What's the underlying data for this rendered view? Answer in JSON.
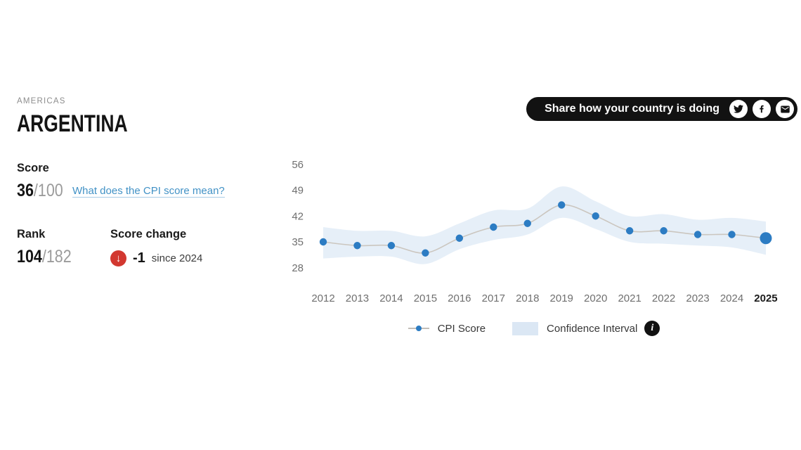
{
  "header": {
    "region": "AMERICAS",
    "country": "ARGENTINA"
  },
  "share": {
    "label": "Share how your country is doing",
    "icons": [
      "twitter-icon",
      "facebook-icon",
      "email-icon"
    ],
    "pill_color": "#121212"
  },
  "stats": {
    "score_label": "Score",
    "score_value": "36",
    "score_denominator": "/100",
    "score_link": "What does the CPI score mean?",
    "rank_label": "Rank",
    "rank_value": "104",
    "rank_denominator": "/182",
    "change_label": "Score change",
    "change_direction": "down",
    "change_arrow": "↓",
    "change_value": "-1",
    "change_suffix": "since 2024"
  },
  "legend": {
    "cpi_label": "CPI Score",
    "ci_label": "Confidence Interval",
    "info_glyph": "i"
  },
  "chart_data": {
    "type": "line",
    "title": "CPI Score over time for Argentina",
    "x": [
      2012,
      2013,
      2014,
      2015,
      2016,
      2017,
      2018,
      2019,
      2020,
      2021,
      2022,
      2023,
      2024,
      2025
    ],
    "series": [
      {
        "name": "CPI Score",
        "values": [
          35,
          34,
          34,
          32,
          36,
          39,
          40,
          45,
          42,
          38,
          38,
          37,
          37,
          36
        ]
      }
    ],
    "confidence_interval": {
      "name": "Confidence Interval",
      "upper": [
        39,
        38,
        38,
        36.5,
        40,
        43.5,
        44,
        50,
        46,
        42,
        42.5,
        41,
        41.5,
        40.5
      ],
      "lower": [
        30.5,
        31,
        31,
        29,
        33,
        35.5,
        37,
        41.5,
        38.5,
        35,
        34.5,
        34,
        33.5,
        31.5
      ]
    },
    "yticks": [
      56,
      49,
      42,
      35,
      28
    ],
    "ylim": [
      25,
      59
    ],
    "grid": false,
    "legend_position": "bottom",
    "bold_last_x_label": true,
    "highlight_last_point": true,
    "colors": {
      "point": "#2c7cc3",
      "band": "#e3edf7",
      "line": "#cbc6bf",
      "axis_text": "#6f6f6f",
      "axis_text_bold": "#1b1b1b"
    }
  }
}
